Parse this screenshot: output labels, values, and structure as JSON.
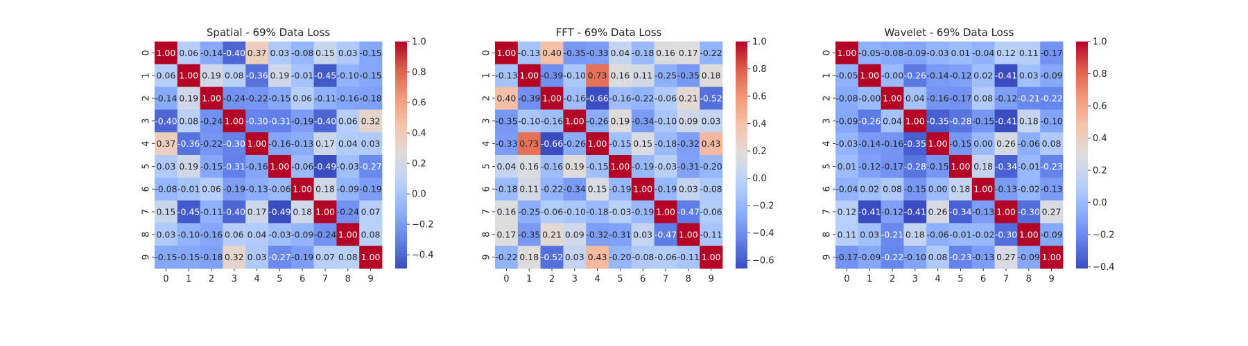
{
  "chart_data": [
    {
      "type": "heatmap",
      "title": "Spatial - 69% Data Loss",
      "x_categories": [
        "0",
        "1",
        "2",
        "3",
        "4",
        "5",
        "6",
        "7",
        "8",
        "9"
      ],
      "y_categories": [
        "0",
        "1",
        "2",
        "3",
        "4",
        "5",
        "6",
        "7",
        "8",
        "9"
      ],
      "values": [
        [
          1.0,
          0.06,
          -0.14,
          -0.4,
          0.37,
          0.03,
          -0.08,
          0.15,
          0.03,
          -0.15
        ],
        [
          0.06,
          1.0,
          0.19,
          0.08,
          -0.36,
          0.19,
          -0.01,
          -0.45,
          -0.1,
          -0.15
        ],
        [
          -0.14,
          0.19,
          1.0,
          -0.24,
          -0.22,
          -0.15,
          0.06,
          -0.11,
          -0.16,
          -0.18
        ],
        [
          -0.4,
          0.08,
          -0.24,
          1.0,
          -0.3,
          -0.31,
          -0.19,
          -0.4,
          0.06,
          0.32
        ],
        [
          0.37,
          -0.36,
          -0.22,
          -0.3,
          1.0,
          -0.16,
          -0.13,
          0.17,
          0.04,
          0.03
        ],
        [
          0.03,
          0.19,
          -0.15,
          -0.31,
          -0.16,
          1.0,
          -0.06,
          -0.49,
          -0.03,
          -0.27
        ],
        [
          -0.08,
          -0.01,
          0.06,
          -0.19,
          -0.13,
          -0.06,
          1.0,
          0.18,
          -0.09,
          -0.19
        ],
        [
          0.15,
          -0.45,
          -0.11,
          -0.4,
          0.17,
          -0.49,
          0.18,
          1.0,
          -0.24,
          0.07
        ],
        [
          0.03,
          -0.1,
          -0.16,
          0.06,
          0.04,
          -0.03,
          -0.09,
          -0.24,
          1.0,
          0.08
        ],
        [
          -0.15,
          -0.15,
          -0.18,
          0.32,
          0.03,
          -0.27,
          -0.19,
          0.07,
          0.08,
          1.0
        ]
      ],
      "colormap": "coolwarm",
      "vmin": -0.49,
      "vmax": 1.0,
      "colorbar_ticks": [
        "1.0",
        "0.8",
        "0.6",
        "0.4",
        "0.2",
        "0.0",
        "−0.2",
        "−0.4"
      ],
      "colorbar_tick_values": [
        1.0,
        0.8,
        0.6,
        0.4,
        0.2,
        0.0,
        -0.2,
        -0.4
      ]
    },
    {
      "type": "heatmap",
      "title": "FFT - 69% Data Loss",
      "x_categories": [
        "0",
        "1",
        "2",
        "3",
        "4",
        "5",
        "6",
        "7",
        "8",
        "9"
      ],
      "y_categories": [
        "0",
        "1",
        "2",
        "3",
        "4",
        "5",
        "6",
        "7",
        "8",
        "9"
      ],
      "values": [
        [
          1.0,
          -0.13,
          0.4,
          -0.35,
          -0.33,
          0.04,
          -0.18,
          0.16,
          0.17,
          -0.22
        ],
        [
          -0.13,
          1.0,
          -0.39,
          -0.1,
          0.73,
          0.16,
          0.11,
          -0.25,
          -0.35,
          0.18
        ],
        [
          0.4,
          -0.39,
          1.0,
          -0.16,
          -0.66,
          -0.16,
          -0.22,
          -0.06,
          0.21,
          -0.52
        ],
        [
          -0.35,
          -0.1,
          -0.16,
          1.0,
          -0.26,
          0.19,
          -0.34,
          -0.1,
          0.09,
          0.03
        ],
        [
          -0.33,
          0.73,
          -0.66,
          -0.26,
          1.0,
          -0.15,
          0.15,
          -0.18,
          -0.32,
          0.43
        ],
        [
          0.04,
          0.16,
          -0.16,
          0.19,
          -0.15,
          1.0,
          -0.19,
          -0.03,
          -0.31,
          -0.2
        ],
        [
          -0.18,
          0.11,
          -0.22,
          -0.34,
          0.15,
          -0.19,
          1.0,
          -0.19,
          0.03,
          -0.08
        ],
        [
          0.16,
          -0.25,
          -0.06,
          -0.1,
          -0.18,
          -0.03,
          -0.19,
          1.0,
          -0.47,
          -0.06
        ],
        [
          0.17,
          -0.35,
          0.21,
          0.09,
          -0.32,
          -0.31,
          0.03,
          -0.47,
          1.0,
          -0.11
        ],
        [
          -0.22,
          0.18,
          -0.52,
          0.03,
          0.43,
          -0.2,
          -0.08,
          -0.06,
          -0.11,
          1.0
        ]
      ],
      "colormap": "coolwarm",
      "vmin": -0.66,
      "vmax": 1.0,
      "colorbar_ticks": [
        "1.0",
        "0.8",
        "0.6",
        "0.4",
        "0.2",
        "0.0",
        "−0.2",
        "−0.4",
        "−0.6"
      ],
      "colorbar_tick_values": [
        1.0,
        0.8,
        0.6,
        0.4,
        0.2,
        0.0,
        -0.2,
        -0.4,
        -0.6
      ]
    },
    {
      "type": "heatmap",
      "title": "Wavelet - 69% Data Loss",
      "x_categories": [
        "0",
        "1",
        "2",
        "3",
        "4",
        "5",
        "6",
        "7",
        "8",
        "9"
      ],
      "y_categories": [
        "0",
        "1",
        "2",
        "3",
        "4",
        "5",
        "6",
        "7",
        "8",
        "9"
      ],
      "values": [
        [
          1.0,
          -0.05,
          -0.08,
          -0.09,
          -0.03,
          0.01,
          -0.04,
          0.12,
          0.11,
          -0.17
        ],
        [
          -0.05,
          1.0,
          -0.0,
          -0.26,
          -0.14,
          -0.12,
          0.02,
          -0.41,
          0.03,
          -0.09
        ],
        [
          -0.08,
          -0.0,
          1.0,
          0.04,
          -0.16,
          -0.17,
          0.08,
          -0.12,
          -0.21,
          -0.22
        ],
        [
          -0.09,
          -0.26,
          0.04,
          1.0,
          -0.35,
          -0.28,
          -0.15,
          -0.41,
          0.18,
          -0.1
        ],
        [
          -0.03,
          -0.14,
          -0.16,
          -0.35,
          1.0,
          -0.15,
          0.0,
          0.26,
          -0.06,
          0.08
        ],
        [
          0.01,
          -0.12,
          -0.17,
          -0.28,
          -0.15,
          1.0,
          0.18,
          -0.34,
          -0.01,
          -0.23
        ],
        [
          -0.04,
          0.02,
          0.08,
          -0.15,
          0.0,
          0.18,
          1.0,
          -0.13,
          -0.02,
          -0.13
        ],
        [
          0.12,
          -0.41,
          -0.12,
          -0.41,
          0.26,
          -0.34,
          -0.13,
          1.0,
          -0.3,
          0.27
        ],
        [
          0.11,
          0.03,
          -0.21,
          0.18,
          -0.06,
          -0.01,
          -0.02,
          -0.3,
          1.0,
          -0.09
        ],
        [
          -0.17,
          -0.09,
          -0.22,
          -0.1,
          0.08,
          -0.23,
          -0.13,
          0.27,
          -0.09,
          1.0
        ]
      ],
      "colormap": "coolwarm",
      "vmin": -0.41,
      "vmax": 1.0,
      "colorbar_ticks": [
        "1.0",
        "0.8",
        "0.6",
        "0.4",
        "0.2",
        "0.0",
        "−0.2",
        "−0.4"
      ],
      "colorbar_tick_values": [
        1.0,
        0.8,
        0.6,
        0.4,
        0.2,
        0.0,
        -0.2,
        -0.4
      ]
    }
  ]
}
